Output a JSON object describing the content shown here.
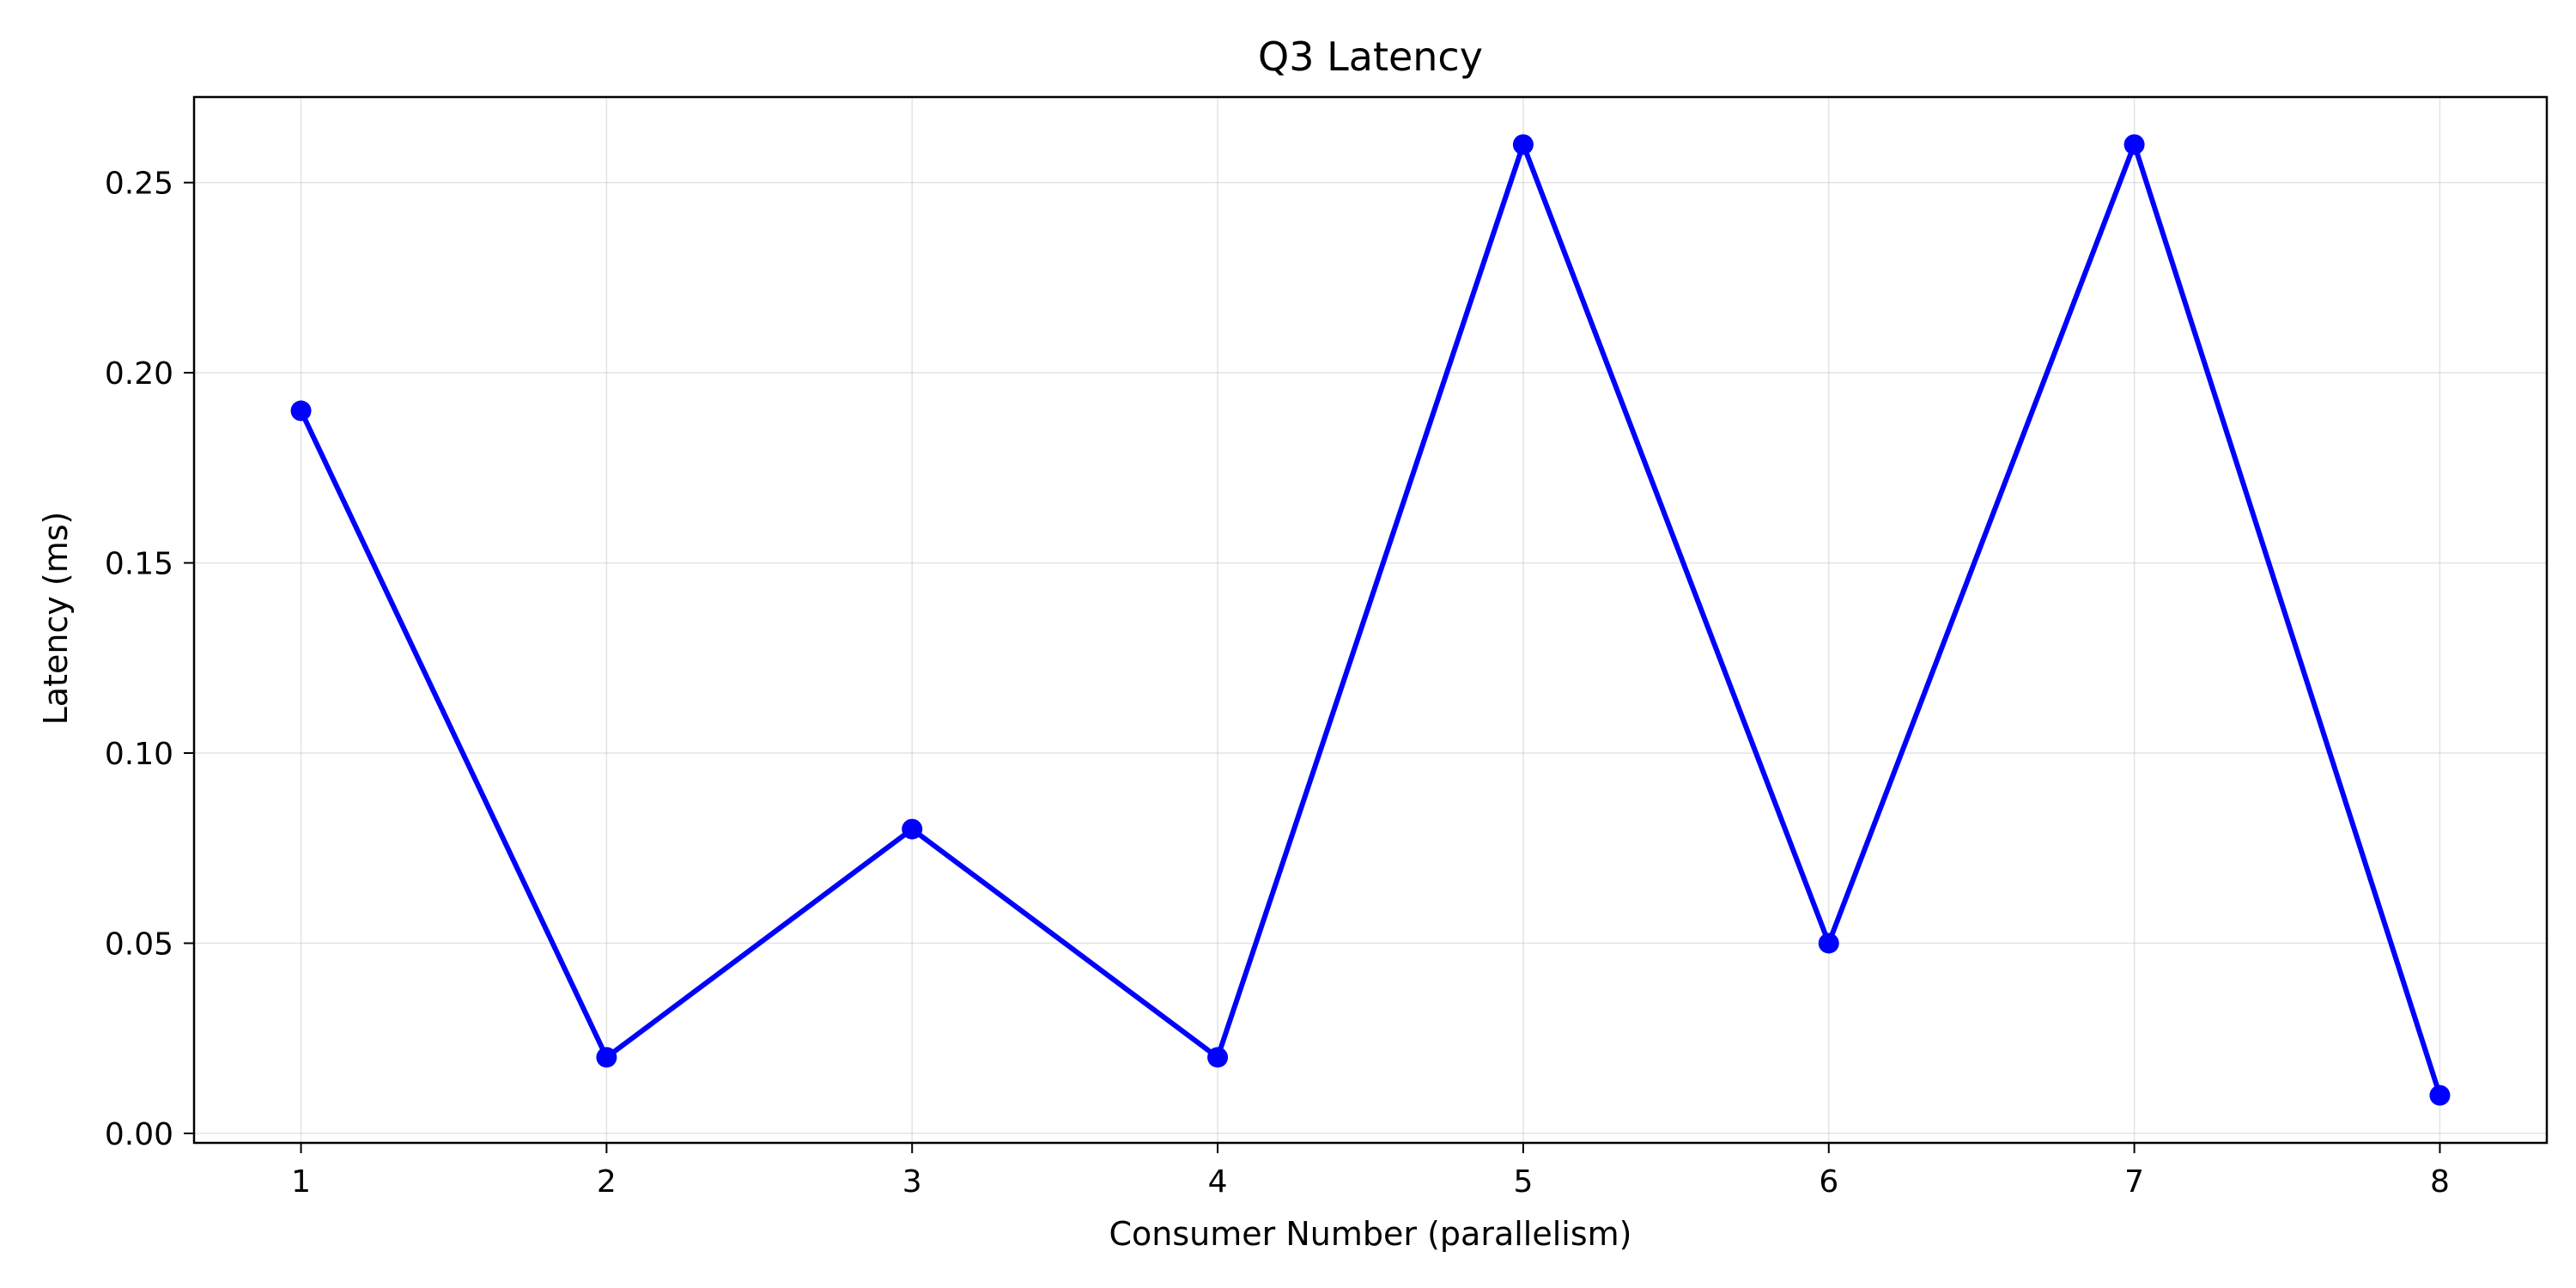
{
  "chart_data": {
    "type": "line",
    "title": "Q3 Latency",
    "xlabel": "Consumer Number (parallelism)",
    "ylabel": "Latency (ms)",
    "x": [
      1,
      2,
      3,
      4,
      5,
      6,
      7,
      8
    ],
    "x_tick_labels": [
      "1",
      "2",
      "3",
      "4",
      "5",
      "6",
      "7",
      "8"
    ],
    "y_ticks": [
      0.0,
      0.05,
      0.1,
      0.15,
      0.2,
      0.25
    ],
    "y_tick_labels": [
      "0.00",
      "0.05",
      "0.10",
      "0.15",
      "0.20",
      "0.25"
    ],
    "xlim": [
      0.65,
      8.35
    ],
    "ylim": [
      -0.0025,
      0.2725
    ],
    "grid": true,
    "series": [
      {
        "name": "Latency",
        "values": [
          0.19,
          0.02,
          0.08,
          0.02,
          0.26,
          0.05,
          0.26,
          0.01
        ],
        "color": "#0000ff",
        "marker": "circle"
      }
    ]
  }
}
